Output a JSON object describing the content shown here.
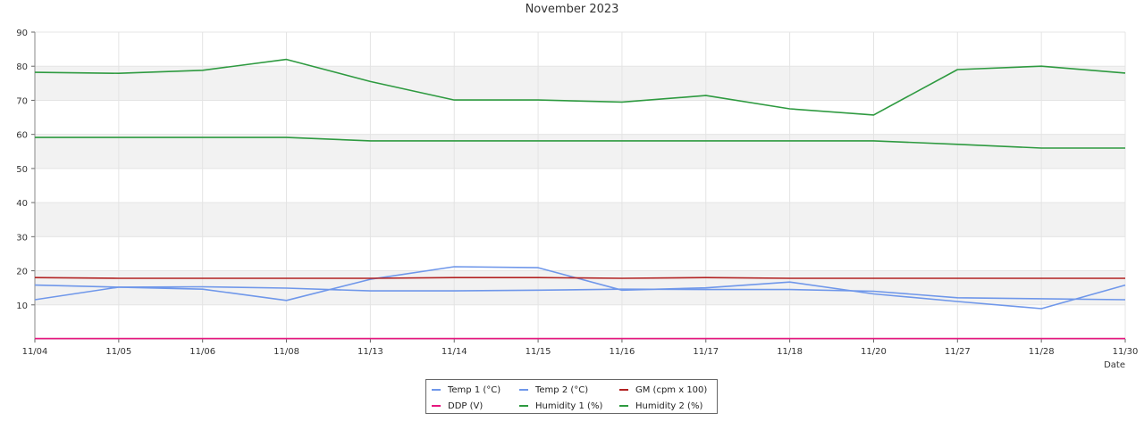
{
  "chart_data": {
    "type": "line",
    "title": "November 2023",
    "xlabel": "Date",
    "ylabel": "",
    "ylim": [
      0,
      90
    ],
    "yticks": [
      10,
      20,
      30,
      40,
      50,
      60,
      70,
      80,
      90
    ],
    "grid": true,
    "legend_position": "bottom-center",
    "categories": [
      "11/04",
      "11/05",
      "11/06",
      "11/08",
      "11/13",
      "11/14",
      "11/15",
      "11/16",
      "11/17",
      "11/18",
      "11/20",
      "11/27",
      "11/28",
      "11/30"
    ],
    "series": [
      {
        "name": "Temp 1 (°C)",
        "color": "#6f97ea",
        "values": [
          11.5,
          15.2,
          15.3,
          14.9,
          14.1,
          14.1,
          14.3,
          14.6,
          14.5,
          14.5,
          14.0,
          12.1,
          11.8,
          11.5
        ]
      },
      {
        "name": "Temp 2 (°C)",
        "color": "#6f97ea",
        "values": [
          15.8,
          15.2,
          14.6,
          11.3,
          17.5,
          21.2,
          20.9,
          14.3,
          15.0,
          16.7,
          13.2,
          11.0,
          8.9,
          15.8
        ]
      },
      {
        "name": "GM (cpm x 100)",
        "color": "#b22222",
        "values": [
          18.0,
          17.8,
          17.8,
          17.8,
          17.8,
          18.0,
          18.0,
          17.8,
          18.0,
          17.8,
          17.8,
          17.8,
          17.8,
          17.8
        ]
      },
      {
        "name": "DDP (V)",
        "color": "#e6177f",
        "values": [
          0.1,
          0.1,
          0.1,
          0.1,
          0.1,
          0.1,
          0.1,
          0.1,
          0.1,
          0.1,
          0.1,
          0.1,
          0.1,
          0.1
        ]
      },
      {
        "name": "Humidity 1 (%)",
        "color": "#2e9a40",
        "values": [
          78.2,
          77.9,
          78.8,
          82.0,
          75.5,
          70.1,
          70.1,
          69.5,
          71.4,
          67.5,
          65.7,
          79.0,
          80.0,
          78.0
        ]
      },
      {
        "name": "Humidity 2 (%)",
        "color": "#2e9a40",
        "values": [
          59.1,
          59.1,
          59.1,
          59.1,
          58.1,
          58.1,
          58.1,
          58.1,
          58.1,
          58.1,
          58.1,
          57.1,
          56.0,
          56.0
        ]
      }
    ]
  }
}
